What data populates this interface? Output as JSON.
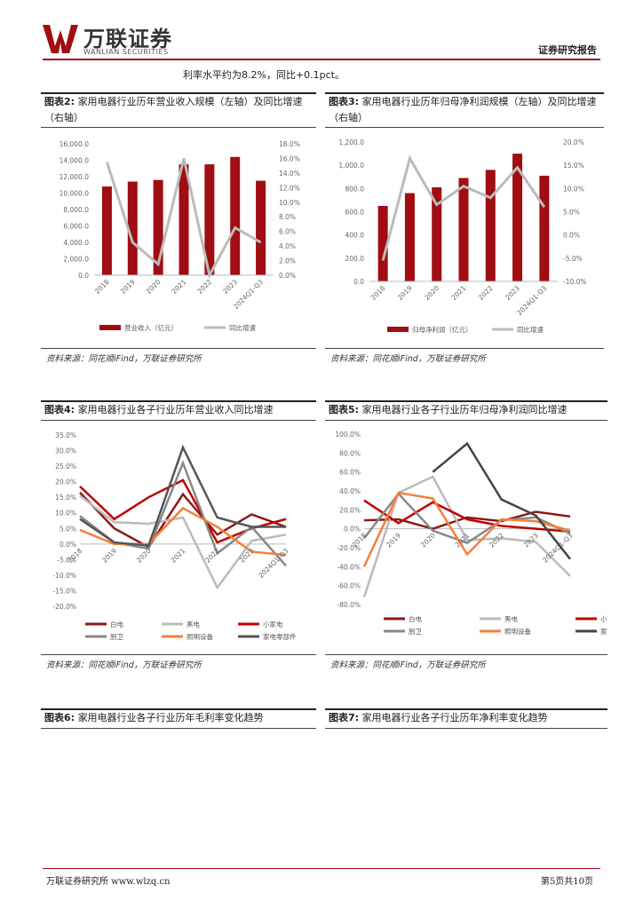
{
  "header": {
    "logo_cn": "万联证券",
    "logo_en": "WANLIAN SECURITIES",
    "report_type": "证券研究报告"
  },
  "intro_text": "利率水平约为8.2%，同比+0.1pct。",
  "colors": {
    "brand": "#a00d12",
    "gray": "#bbbbbb",
    "red": "#c00000",
    "orange": "#f4803a",
    "dark": "#444444",
    "darkred": "#8b1a1a",
    "midgray": "#888888"
  },
  "figures": {
    "fig2": {
      "label": "图表2:",
      "title": "家用电器行业历年营业收入规模（左轴）及同比增速（右轴）",
      "source": "资料来源：同花顺iFind，万联证券研究所"
    },
    "fig3": {
      "label": "图表3:",
      "title": "家用电器行业历年归母净利润规模（左轴）及同比增速（右轴）",
      "source": "资料来源：同花顺iFind，万联证券研究所"
    },
    "fig4": {
      "label": "图表4:",
      "title": "家用电器行业各子行业历年营业收入同比增速",
      "source": "资料来源：同花顺iFind，万联证券研究所"
    },
    "fig5": {
      "label": "图表5:",
      "title": "家用电器行业各子行业历年归母净利润同比增速",
      "source": "资料来源：同花顺iFind，万联证券研究所"
    },
    "fig6": {
      "label": "图表6:",
      "title": "家用电器行业各子行业历年毛利率变化趋势"
    },
    "fig7": {
      "label": "图表7:",
      "title": "家用电器行业各子行业历年净利率变化趋势"
    }
  },
  "chart_data": [
    {
      "id": "fig2",
      "type": "bar",
      "categories": [
        "2018",
        "2019",
        "2020",
        "2021",
        "2022",
        "2023",
        "2024Q1-Q3"
      ],
      "series": [
        {
          "name": "营业收入（亿元）",
          "values": [
            10800,
            11400,
            11600,
            13500,
            13500,
            14400,
            11500
          ],
          "axis": "left"
        },
        {
          "name": "同比增速",
          "values": [
            15.5,
            4.5,
            1.5,
            16.0,
            0.0,
            6.5,
            4.5
          ],
          "axis": "right"
        }
      ],
      "ylim_left": [
        0,
        16000
      ],
      "ylim_right": [
        0,
        18
      ],
      "left_ticks": [
        "0.0",
        "2,000.0",
        "4,000.0",
        "6,000.0",
        "8,000.0",
        "10,000.0",
        "12,000.0",
        "14,000.0",
        "16,000.0"
      ],
      "right_ticks": [
        "0.0%",
        "2.0%",
        "4.0%",
        "6.0%",
        "8.0%",
        "10.0%",
        "12.0%",
        "14.0%",
        "16.0%",
        "18.0%"
      ]
    },
    {
      "id": "fig3",
      "type": "bar",
      "categories": [
        "2018",
        "2019",
        "2020",
        "2021",
        "2022",
        "2023",
        "2024Q1-Q3"
      ],
      "series": [
        {
          "name": "归母净利润（亿元）",
          "values": [
            650,
            760,
            810,
            890,
            960,
            1100,
            910
          ],
          "axis": "left"
        },
        {
          "name": "同比增速",
          "values": [
            -5.5,
            16.5,
            6.5,
            10.5,
            8.0,
            14.5,
            6.0
          ],
          "axis": "right"
        }
      ],
      "ylim_left": [
        0,
        1200
      ],
      "ylim_right": [
        -10,
        20
      ],
      "left_ticks": [
        "0.0",
        "200.0",
        "400.0",
        "600.0",
        "800.0",
        "1,000.0",
        "1,200.0"
      ],
      "right_ticks": [
        "-10.0%",
        "-5.0%",
        "0.0%",
        "5.0%",
        "10.0%",
        "15.0%",
        "20.0%"
      ]
    },
    {
      "id": "fig4",
      "type": "line",
      "categories": [
        "2018",
        "2019",
        "2020",
        "2021",
        "2022",
        "2023",
        "2024Q1-Q3"
      ],
      "series": [
        {
          "name": "白电",
          "values": [
            16.5,
            5.0,
            -1.0,
            16.0,
            3.0,
            9.5,
            5.5
          ],
          "color": "#8b1a1a"
        },
        {
          "name": "黑电",
          "values": [
            15.5,
            7.0,
            6.5,
            8.5,
            -14.0,
            1.0,
            3.0
          ],
          "color": "#bbbbbb"
        },
        {
          "name": "小家电",
          "values": [
            18.5,
            8.0,
            15.0,
            20.5,
            0.5,
            5.0,
            8.0
          ],
          "color": "#c00000"
        },
        {
          "name": "厨卫",
          "values": [
            9.0,
            0.5,
            -1.5,
            26.0,
            -3.0,
            5.5,
            -7.0
          ],
          "color": "#888888"
        },
        {
          "name": "照明设备",
          "values": [
            4.5,
            0.0,
            0.0,
            11.5,
            5.5,
            -2.5,
            -3.5
          ],
          "color": "#f4803a"
        },
        {
          "name": "家电零部件",
          "values": [
            8.0,
            0.5,
            -0.5,
            31.0,
            8.5,
            5.5,
            5.5
          ],
          "color": "#555555"
        }
      ],
      "ylim": [
        -20,
        35
      ],
      "ticks": [
        "-20.0%",
        "-15.0%",
        "-10.0%",
        "-5.0%",
        "0.0%",
        "5.0%",
        "10.0%",
        "15.0%",
        "20.0%",
        "25.0%",
        "30.0%",
        "35.0%"
      ]
    },
    {
      "id": "fig5",
      "type": "line",
      "categories": [
        "2018",
        "2019",
        "2020",
        "2021",
        "2022",
        "2023",
        "2024Q1-Q3"
      ],
      "series": [
        {
          "name": "白电",
          "values": [
            9.0,
            10.0,
            0.0,
            12.0,
            8.0,
            18.0,
            13.0
          ],
          "color": "#8b1a1a"
        },
        {
          "name": "黑电",
          "values": [
            -72.0,
            38.0,
            55.0,
            -12.0,
            -10.0,
            -14.0,
            -50.0
          ],
          "color": "#bbbbbb"
        },
        {
          "name": "小家电",
          "values": [
            30.0,
            6.0,
            28.0,
            10.0,
            3.0,
            0.0,
            -3.0
          ],
          "color": "#c00000"
        },
        {
          "name": "厨卫",
          "values": [
            -10.0,
            37.0,
            -2.0,
            -15.0,
            9.0,
            12.0,
            -5.0
          ],
          "color": "#888888"
        },
        {
          "name": "照明设备",
          "values": [
            -40.0,
            38.0,
            32.0,
            -27.0,
            10.0,
            8.0,
            -2.0
          ],
          "color": "#f4803a"
        },
        {
          "name": "家电零部件",
          "values": [
            null,
            null,
            60.0,
            90.0,
            31.0,
            14.0,
            -32.0
          ],
          "color": "#444444"
        }
      ],
      "ylim": [
        -80,
        100
      ],
      "ticks": [
        "-80.0%",
        "-60.0%",
        "-40.0%",
        "-20.0%",
        "0.0%",
        "20.0%",
        "40.0%",
        "60.0%",
        "80.0%",
        "100.0%"
      ]
    }
  ],
  "footer": {
    "left": "万联证券研究所  www.wlzq.cn",
    "right": "第5页共10页"
  }
}
